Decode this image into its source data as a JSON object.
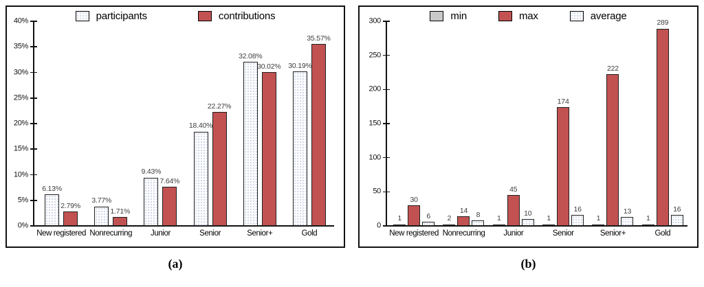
{
  "figure_captions": {
    "a": "(a)",
    "b": "(b)"
  },
  "colors": {
    "bar_red": "#c25252",
    "bar_gray": "#c9c9c9",
    "bar_border": "#1f1f1f",
    "pattern_dot": "#a9b8d6",
    "axis": "#111111",
    "panel_border": "#111111",
    "value_label": "#3d3d3d"
  },
  "chart_data": [
    {
      "type": "bar",
      "panel": "a",
      "title": "",
      "xlabel": "",
      "ylabel": "",
      "grid": false,
      "legend_position": "top-center",
      "categories": [
        "New registered",
        "Nonrecurring",
        "Junior",
        "Senior",
        "Senior+",
        "Gold"
      ],
      "series": [
        {
          "name": "participants",
          "style": "dotted",
          "values": [
            6.13,
            3.77,
            9.43,
            18.4,
            32.08,
            30.19
          ],
          "labels": [
            "6.13%",
            "3.77%",
            "9.43%",
            "18.40%",
            "32.08%",
            "30.19%"
          ]
        },
        {
          "name": "contributions",
          "style": "red",
          "values": [
            2.79,
            1.71,
            7.64,
            22.27,
            30.02,
            35.57
          ],
          "labels": [
            "2.79%",
            "1.71%",
            "7.64%",
            "22.27%",
            "30.02%",
            "35.57%"
          ]
        }
      ],
      "ylim": [
        0,
        40
      ],
      "yticks": [
        {
          "value": 0,
          "label": "0%"
        },
        {
          "value": 5,
          "label": "5%"
        },
        {
          "value": 10,
          "label": "10%"
        },
        {
          "value": 15,
          "label": "15%"
        },
        {
          "value": 20,
          "label": "20%"
        },
        {
          "value": 25,
          "label": "25%"
        },
        {
          "value": 30,
          "label": "30%"
        },
        {
          "value": 35,
          "label": "35%"
        },
        {
          "value": 40,
          "label": "40%"
        }
      ]
    },
    {
      "type": "bar",
      "panel": "b",
      "title": "",
      "xlabel": "",
      "ylabel": "",
      "grid": false,
      "legend_position": "top-center",
      "categories": [
        "New registered",
        "Nonrecurring",
        "Junior",
        "Senior",
        "Senior+",
        "Gold"
      ],
      "series": [
        {
          "name": "min",
          "style": "gray",
          "values": [
            1,
            2,
            1,
            1,
            1,
            1
          ],
          "labels": [
            "1",
            "2",
            "1",
            "1",
            "1",
            "1"
          ]
        },
        {
          "name": "max",
          "style": "red",
          "values": [
            30,
            14,
            45,
            174,
            222,
            289
          ],
          "labels": [
            "30",
            "14",
            "45",
            "174",
            "222",
            "289"
          ]
        },
        {
          "name": "average",
          "style": "dotted",
          "values": [
            6,
            8,
            10,
            16,
            13,
            16
          ],
          "labels": [
            "6",
            "8",
            "10",
            "16",
            "13",
            "16"
          ]
        }
      ],
      "ylim": [
        0,
        300
      ],
      "yticks": [
        {
          "value": 0,
          "label": "0"
        },
        {
          "value": 50,
          "label": "50"
        },
        {
          "value": 100,
          "label": "100"
        },
        {
          "value": 150,
          "label": "150"
        },
        {
          "value": 200,
          "label": "200"
        },
        {
          "value": 250,
          "label": "250"
        },
        {
          "value": 300,
          "label": "300"
        }
      ]
    }
  ]
}
